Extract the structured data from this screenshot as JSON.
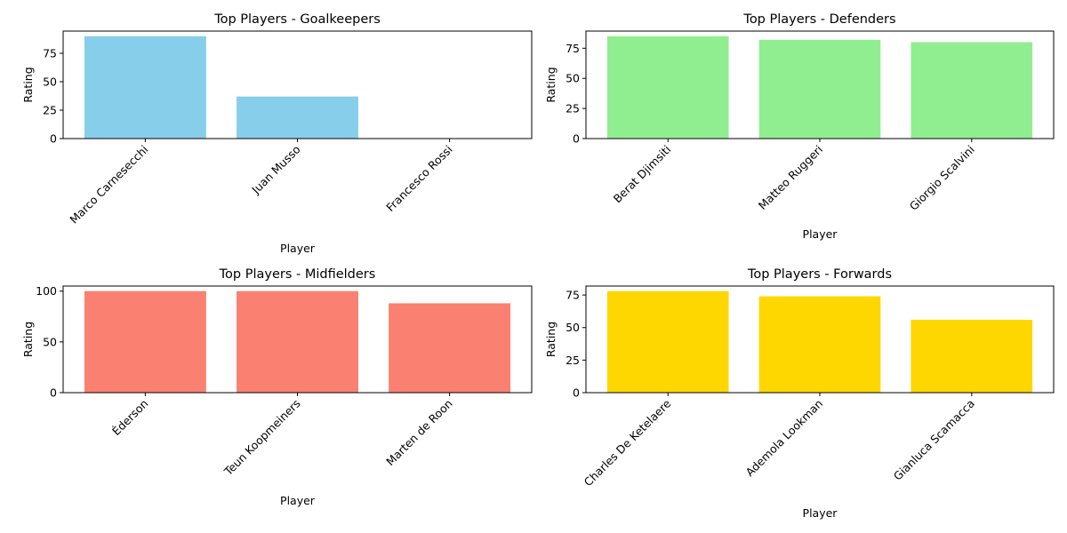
{
  "chart_data": [
    {
      "type": "bar",
      "title": "Top Players - Goalkeepers",
      "xlabel": "Player",
      "ylabel": "Rating",
      "categories": [
        "Marco Carnesecchi",
        "Juan Musso",
        "Francesco Rossi"
      ],
      "values": [
        90,
        37,
        0
      ],
      "ylim": [
        0,
        94.5
      ],
      "yticks": [
        0,
        25,
        50,
        75
      ],
      "color": "#87CEEB",
      "grid": false
    },
    {
      "type": "bar",
      "title": "Top Players - Defenders",
      "xlabel": "Player",
      "ylabel": "Rating",
      "categories": [
        "Berat Djimsiti",
        "Matteo Ruggeri",
        "Giorgio Scalvini"
      ],
      "values": [
        85,
        82,
        80
      ],
      "ylim": [
        0,
        89.25
      ],
      "yticks": [
        0,
        25,
        50,
        75
      ],
      "color": "#90EE90",
      "grid": false
    },
    {
      "type": "bar",
      "title": "Top Players - Midfielders",
      "xlabel": "Player",
      "ylabel": "Rating",
      "categories": [
        "Éderson",
        "Teun Koopmeiners",
        "Marten de Roon"
      ],
      "values": [
        100,
        100,
        88
      ],
      "ylim": [
        0,
        105
      ],
      "yticks": [
        0,
        50,
        100
      ],
      "color": "#FA8072",
      "grid": false
    },
    {
      "type": "bar",
      "title": "Top Players - Forwards",
      "xlabel": "Player",
      "ylabel": "Rating",
      "categories": [
        "Charles De Ketelaere",
        "Ademola Lookman",
        "Gianluca Scamacca"
      ],
      "values": [
        78,
        74,
        56
      ],
      "ylim": [
        0,
        81.9
      ],
      "yticks": [
        0,
        25,
        50,
        75
      ],
      "color": "#FFD700",
      "grid": false
    }
  ]
}
